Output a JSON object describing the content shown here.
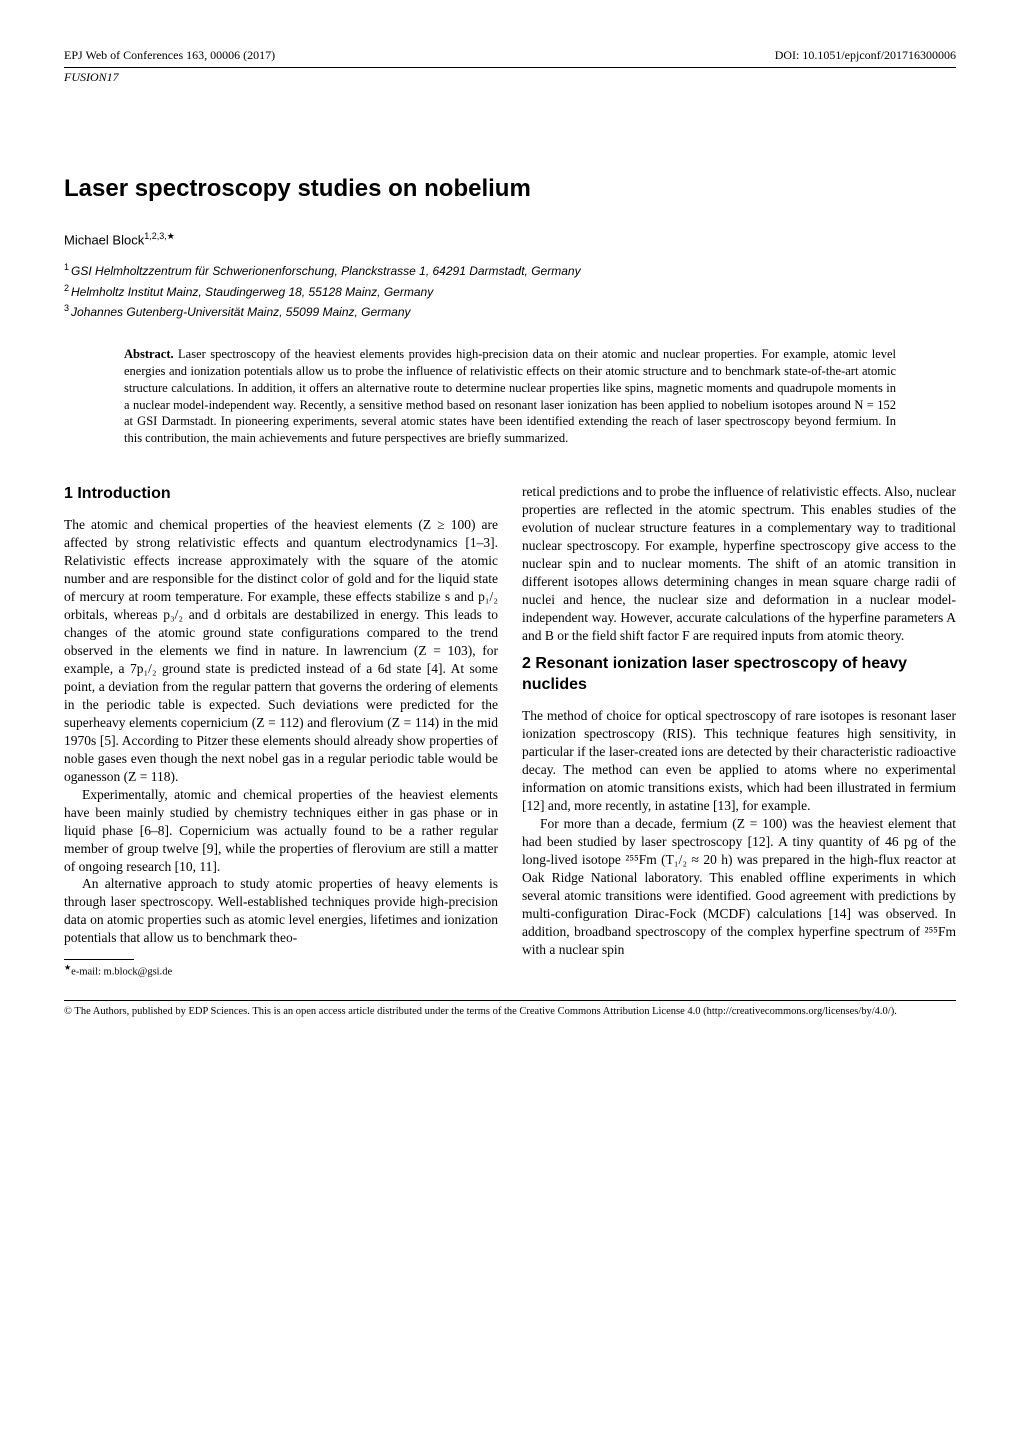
{
  "header": {
    "left": "EPJ Web of Conferences 163, 00006 (2017)",
    "right": "DOI: 10.1051/epjconf/201716300006",
    "line2": "FUSION17"
  },
  "title": "Laser spectroscopy studies on nobelium",
  "author": {
    "name": "Michael Block",
    "sup": "1,2,3,★"
  },
  "affiliations": [
    {
      "num": "1",
      "text": "GSI Helmholtzzentrum für Schwerionenforschung, Planckstrasse 1, 64291 Darmstadt, Germany"
    },
    {
      "num": "2",
      "text": "Helmholtz Institut Mainz, Staudingerweg 18, 55128 Mainz, Germany"
    },
    {
      "num": "3",
      "text": "Johannes Gutenberg-Universität Mainz, 55099 Mainz, Germany"
    }
  ],
  "abstract": {
    "label": "Abstract.",
    "text": "Laser spectroscopy of the heaviest elements provides high-precision data on their atomic and nuclear properties. For example, atomic level energies and ionization potentials allow us to probe the influence of relativistic effects on their atomic structure and to benchmark state-of-the-art atomic structure calculations. In addition, it offers an alternative route to determine nuclear properties like spins, magnetic moments and quadrupole moments in a nuclear model-independent way. Recently, a sensitive method based on resonant laser ionization has been applied to nobelium isotopes around N = 152 at GSI Darmstadt. In pioneering experiments, several atomic states have been identified extending the reach of laser spectroscopy beyond fermium. In this contribution, the main achievements and future perspectives are briefly summarized."
  },
  "section1": {
    "heading": "1 Introduction",
    "p1": "The atomic and chemical properties of the heaviest elements (Z ≥ 100) are affected by strong relativistic effects and quantum electrodynamics [1–3]. Relativistic effects increase approximately with the square of the atomic number and are responsible for the distinct color of gold and for the liquid state of mercury at room temperature. For example, these effects stabilize s and p₁/₂ orbitals, whereas p₃/₂ and d orbitals are destabilized in energy. This leads to changes of the atomic ground state configurations compared to the trend observed in the elements we find in nature. In lawrencium (Z = 103), for example, a 7p₁/₂ ground state is predicted instead of a 6d state [4]. At some point, a deviation from the regular pattern that governs the ordering of elements in the periodic table is expected. Such deviations were predicted for the superheavy elements copernicium (Z = 112) and flerovium (Z = 114) in the mid 1970s [5]. According to Pitzer these elements should already show properties of noble gases even though the next nobel gas in a regular periodic table would be oganesson (Z = 118).",
    "p2": "Experimentally, atomic and chemical properties of the heaviest elements have been mainly studied by chemistry techniques either in gas phase or in liquid phase [6–8]. Copernicium was actually found to be a rather regular member of group twelve [9], while the properties of flerovium are still a matter of ongoing research [10, 11].",
    "p3": "An alternative approach to study atomic properties of heavy elements is through laser spectroscopy. Well-established techniques provide high-precision data on atomic properties such as atomic level energies, lifetimes and ionization potentials that allow us to benchmark theo-"
  },
  "col2_top": "retical predictions and to probe the influence of relativistic effects. Also, nuclear properties are reflected in the atomic spectrum. This enables studies of the evolution of nuclear structure features in a complementary way to traditional nuclear spectroscopy. For example, hyperfine spectroscopy give access to the nuclear spin and to nuclear moments. The shift of an atomic transition in different isotopes allows determining changes in mean square charge radii of nuclei and hence, the nuclear size and deformation in a nuclear model-independent way. However, accurate calculations of the hyperfine parameters A and B or the field shift factor F are required inputs from atomic theory.",
  "section2": {
    "heading": "2 Resonant ionization laser spectroscopy of heavy nuclides",
    "p1": "The method of choice for optical spectroscopy of rare isotopes is resonant laser ionization spectroscopy (RIS). This technique features high sensitivity, in particular if the laser-created ions are detected by their characteristic radioactive decay. The method can even be applied to atoms where no experimental information on atomic transitions exists, which had been illustrated in fermium [12] and, more recently, in astatine [13], for example.",
    "p2": "For more than a decade, fermium (Z = 100) was the heaviest element that had been studied by laser spectroscopy [12]. A tiny quantity of 46 pg of the long-lived isotope ²⁵⁵Fm (T₁/₂ ≈ 20 h) was prepared in the high-flux reactor at Oak Ridge National laboratory. This enabled offline experiments in which several atomic transitions were identified. Good agreement with predictions by multi-configuration Dirac-Fock (MCDF) calculations [14] was observed. In addition, broadband spectroscopy of the complex hyperfine spectrum of ²⁵⁵Fm with a nuclear spin"
  },
  "footnote": {
    "marker": "★",
    "text": "e-mail: m.block@gsi.de"
  },
  "license": "© The Authors, published by EDP Sciences. This is an open access article distributed under the terms of the Creative Commons Attribution License 4.0 (http://creativecommons.org/licenses/by/4.0/)."
}
